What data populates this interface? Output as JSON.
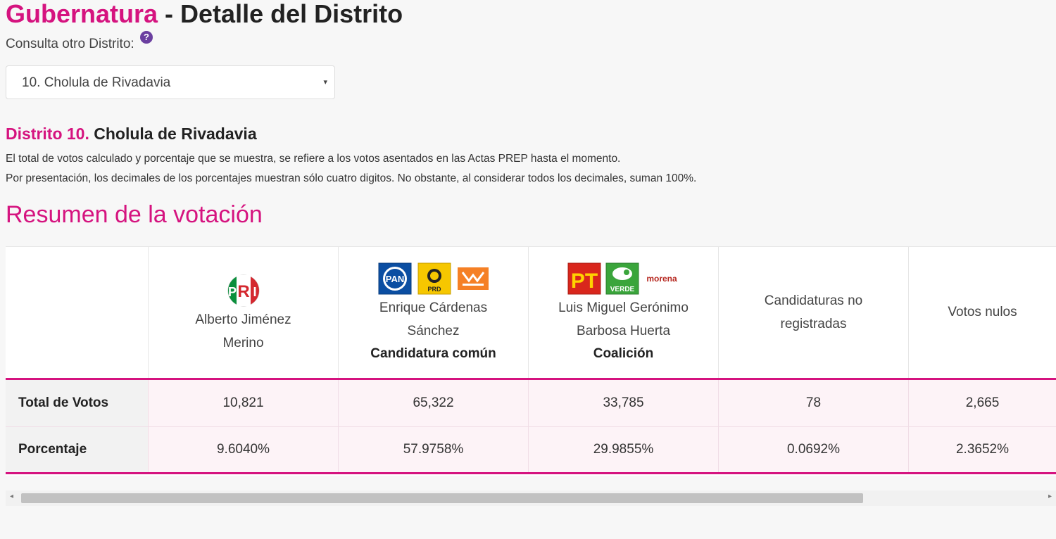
{
  "header": {
    "title_accent": "Gubernatura",
    "title_rest": " - Detalle del Distrito",
    "consulta_label": "Consulta otro Distrito:",
    "help_glyph": "?"
  },
  "selector": {
    "value": "10. Cholula de Rivadavia",
    "caret": "▾"
  },
  "distrito": {
    "prefix": "Distrito 10.",
    "name": " Cholula de Rivadavia",
    "note1": "El total de votos calculado y porcentaje que se muestra, se refiere a los votos asentados en las Actas PREP hasta el momento.",
    "note2": "Por presentación, los decimales de los porcentajes muestran sólo cuatro digitos. No obstante, al considerar todos los decimales, suman 100%."
  },
  "section_title": "Resumen de la votación",
  "table": {
    "columns": [
      {
        "name_line1": "Alberto Jiménez",
        "name_line2": "Merino",
        "tag": "",
        "logos": [
          "PRI"
        ]
      },
      {
        "name_line1": "Enrique Cárdenas",
        "name_line2": "Sánchez",
        "tag": "Candidatura común",
        "logos": [
          "PAN",
          "PRD",
          "MC"
        ]
      },
      {
        "name_line1": "Luis Miguel Gerónimo",
        "name_line2": "Barbosa Huerta",
        "tag": "Coalición",
        "logos": [
          "PT",
          "VERDE",
          "morena"
        ]
      },
      {
        "name_line1": "Candidaturas no",
        "name_line2": "registradas",
        "tag": "",
        "logos": []
      },
      {
        "name_line1": "Votos nulos",
        "name_line2": "",
        "tag": "",
        "logos": []
      }
    ],
    "rows": [
      {
        "label": "Total de Votos",
        "values": [
          "10,821",
          "65,322",
          "33,785",
          "78",
          "2,665"
        ]
      },
      {
        "label": "Porcentaje",
        "values": [
          "9.6040%",
          "57.9758%",
          "29.9855%",
          "0.0692%",
          "2.3652%"
        ]
      }
    ]
  },
  "logo_text": {
    "pan": "PAN",
    "prd": "PRD",
    "pt": "PT",
    "verde": "VERDE",
    "morena": "morena"
  },
  "colors": {
    "accent": "#d5137f",
    "pri_green": "#0a8f3c",
    "pri_red": "#d4282f",
    "pan_blue": "#0b4ea2",
    "prd_yellow": "#f6c700",
    "mc_orange": "#f58025",
    "pt_red": "#d9261c",
    "verde_green": "#3aa53b",
    "morena": "#b5261e"
  }
}
